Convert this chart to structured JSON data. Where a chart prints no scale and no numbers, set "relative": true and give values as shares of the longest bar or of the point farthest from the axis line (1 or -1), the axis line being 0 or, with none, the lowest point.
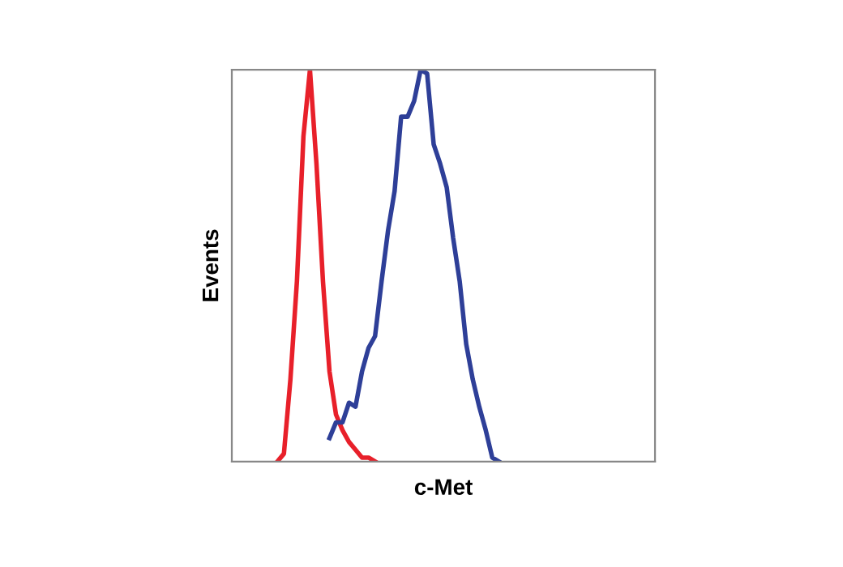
{
  "chart_data": {
    "type": "line",
    "relative": true,
    "xlabel": "c-Met",
    "ylabel": "Events",
    "grid": false,
    "legend": false,
    "marker": "none",
    "line_style": "solid",
    "categories": [
      null,
      null,
      null,
      null,
      null,
      null,
      null,
      null,
      null,
      null,
      null,
      null,
      null,
      null,
      null,
      null,
      null,
      null,
      null,
      null,
      null,
      null,
      null,
      null,
      null,
      null,
      null,
      null,
      null,
      null,
      null,
      null,
      null,
      null,
      null,
      null,
      null,
      null,
      null,
      null,
      null,
      null,
      null,
      null,
      null,
      null,
      null,
      null,
      null,
      null,
      null,
      null,
      null,
      null,
      null,
      null,
      null,
      null,
      null,
      null,
      null,
      null,
      null,
      null,
      null,
      null
    ],
    "series": [
      {
        "color": "#e8202a",
        "values": [
          null,
          null,
          null,
          null,
          null,
          null,
          null,
          0,
          0.02,
          0.21,
          0.46,
          0.83,
          1.0,
          0.76,
          0.46,
          0.23,
          0.12,
          0.08,
          0.05,
          0.03,
          0.01,
          0.01,
          0,
          null,
          null,
          null,
          null,
          null,
          null,
          null,
          null,
          null,
          null,
          null,
          null,
          null,
          null,
          null,
          null,
          null,
          null,
          null,
          null,
          null,
          null,
          null,
          null,
          null,
          null,
          null,
          null,
          null,
          null,
          null,
          null,
          null,
          null,
          null,
          null,
          null,
          null,
          null,
          null,
          null,
          null,
          null
        ]
      },
      {
        "color": "#2e3f98",
        "values": [
          null,
          null,
          null,
          null,
          null,
          null,
          null,
          null,
          null,
          null,
          null,
          null,
          null,
          null,
          null,
          0.06,
          0.1,
          0.1,
          0.15,
          0.14,
          0.23,
          0.29,
          0.32,
          0.46,
          0.59,
          0.69,
          0.88,
          0.88,
          0.92,
          1.0,
          0.99,
          0.81,
          0.76,
          0.7,
          0.57,
          0.46,
          0.3,
          0.21,
          0.14,
          0.08,
          0.01,
          0,
          null,
          null,
          null,
          null,
          null,
          null,
          null,
          null,
          null,
          null,
          null,
          null,
          null,
          null,
          null,
          null,
          null,
          null,
          null,
          null,
          null,
          null,
          null,
          null
        ]
      }
    ]
  }
}
